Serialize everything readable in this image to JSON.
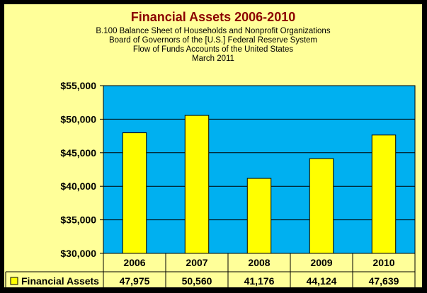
{
  "chart_data": {
    "type": "bar",
    "title": "Financial Assets 2006-2010",
    "subtitles": [
      "B.100 Balance Sheet of Households and Nonprofit Organizations",
      "Board of Governors of the [U.S.] Federal Reserve System",
      "Flow of Funds Accounts of the United States",
      "March 2011"
    ],
    "categories": [
      "2006",
      "2007",
      "2008",
      "2009",
      "2010"
    ],
    "series": [
      {
        "name": "Financial Assets",
        "values": [
          47975,
          50560,
          41176,
          44124,
          47639
        ],
        "labels": [
          "47,975",
          "50,560",
          "41,176",
          "44,124",
          "47,639"
        ],
        "color": "#FFFF00"
      }
    ],
    "ylim": [
      30000,
      55000
    ],
    "yticks": [
      "$30,000",
      "$35,000",
      "$40,000",
      "$45,000",
      "$50,000",
      "$55,000"
    ],
    "grid": true,
    "legend": "data-table",
    "plot_background": "#00B0F0",
    "chart_background": "#FFFF99"
  }
}
